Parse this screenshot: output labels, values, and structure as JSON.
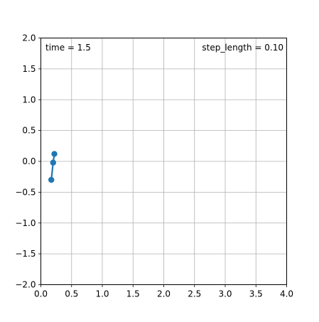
{
  "chart_data": {
    "type": "line",
    "title": "",
    "xlabel": "",
    "ylabel": "",
    "xlim": [
      0.0,
      4.0
    ],
    "ylim": [
      -2.0,
      2.0
    ],
    "grid": true,
    "xticks": [
      "0.0",
      "0.5",
      "1.0",
      "1.5",
      "2.0",
      "2.5",
      "3.0",
      "3.5",
      "4.0"
    ],
    "yticks": [
      "2.0",
      "1.5",
      "1.0",
      "0.5",
      "0.0",
      "−0.5",
      "−1.0",
      "−1.5",
      "−2.0"
    ],
    "series": [
      {
        "color": "#1f77b4",
        "marker": "circle",
        "points": [
          {
            "x": 0.17,
            "y": -0.3
          },
          {
            "x": 0.2,
            "y": -0.02
          },
          {
            "x": 0.22,
            "y": 0.12
          }
        ]
      }
    ],
    "annotations": {
      "time_text": "time = 1.5",
      "step_text": "step_length = 0.10"
    }
  }
}
